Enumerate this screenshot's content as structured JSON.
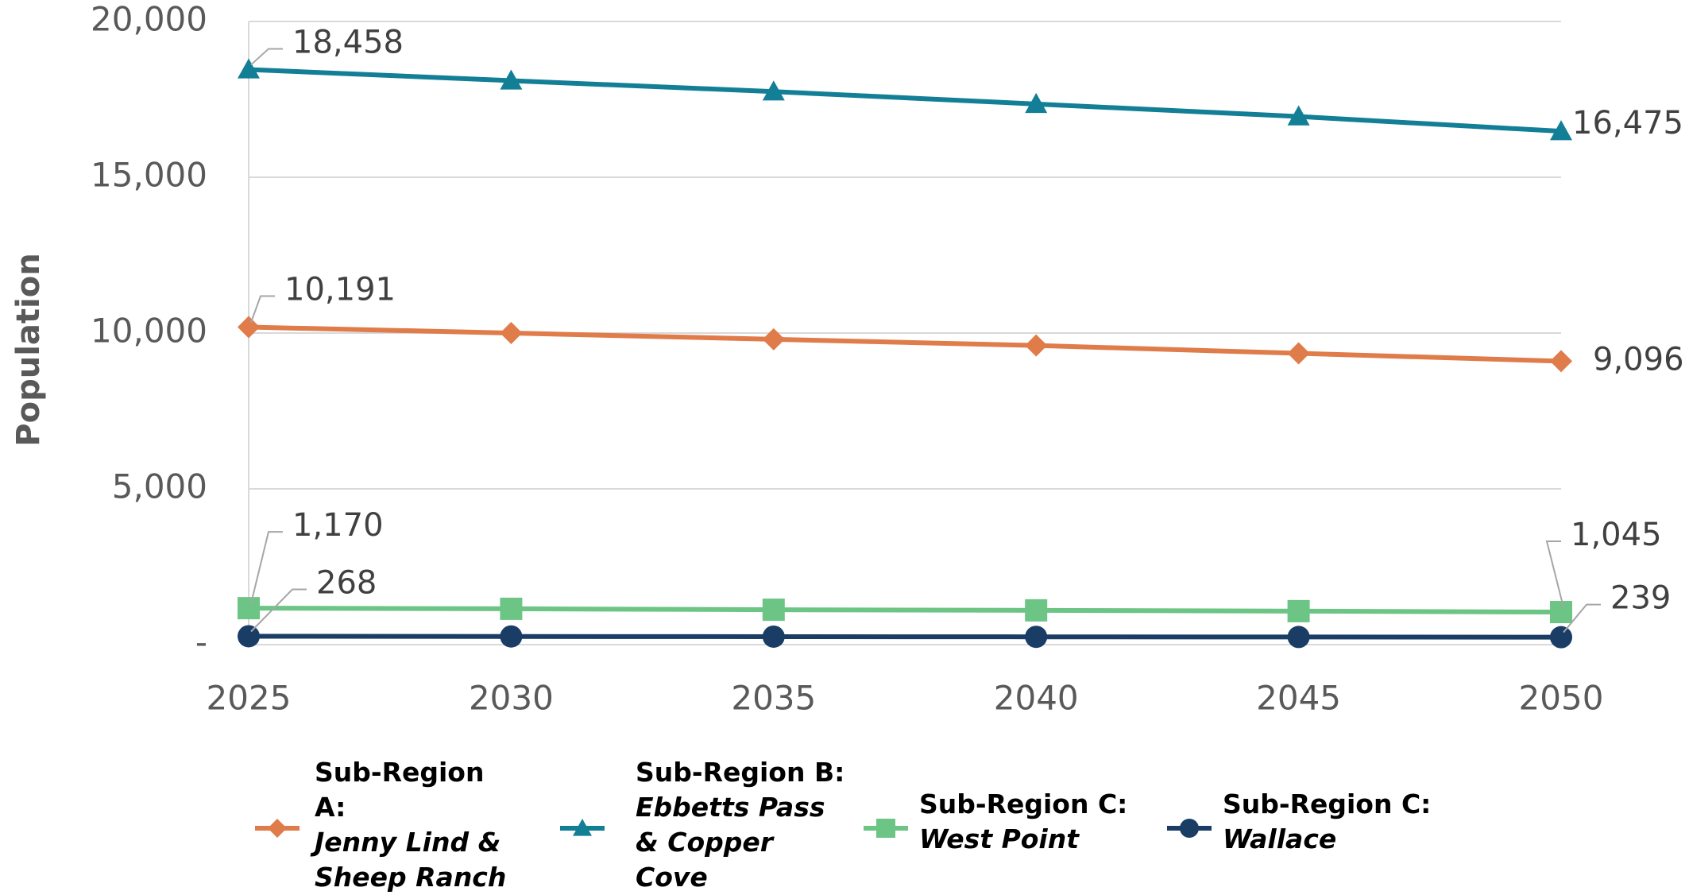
{
  "chart_data": {
    "type": "line",
    "y_label": "Population",
    "categories": [
      "2025",
      "2030",
      "2035",
      "2040",
      "2045",
      "2050"
    ],
    "series": [
      {
        "name": "Sub-Region A: Jenny Lind & Sheep Ranch",
        "color": "#e07b4a",
        "marker": "diamond",
        "values": [
          10191,
          10000,
          9800,
          9600,
          9350,
          9096
        ],
        "value_labels": [
          "10,191",
          null,
          null,
          null,
          null,
          "9,096"
        ]
      },
      {
        "name": "Sub-Region B: Ebbetts Pass & Copper Cove",
        "color": "#137f96",
        "marker": "triangle",
        "values": [
          18458,
          18100,
          17750,
          17350,
          16950,
          16475
        ],
        "value_labels": [
          "18,458",
          null,
          null,
          null,
          null,
          "16,475"
        ]
      },
      {
        "name": "Sub-Region C: West Point",
        "color": "#6cc585",
        "marker": "square",
        "values": [
          1170,
          1150,
          1120,
          1100,
          1075,
          1045
        ],
        "value_labels": [
          "1,170",
          null,
          null,
          null,
          null,
          "1,045"
        ]
      },
      {
        "name": "Sub-Region C: Wallace",
        "color": "#1a3d66",
        "marker": "circle",
        "values": [
          268,
          262,
          256,
          250,
          245,
          239
        ],
        "value_labels": [
          "268",
          null,
          null,
          null,
          null,
          "239"
        ]
      }
    ],
    "ylim": [
      0,
      20000
    ],
    "yticks": [
      {
        "value": 0,
        "label": "-"
      },
      {
        "value": 5000,
        "label": "5,000"
      },
      {
        "value": 10000,
        "label": "10,000"
      },
      {
        "value": 15000,
        "label": "15,000"
      },
      {
        "value": 20000,
        "label": "20,000"
      }
    ],
    "grid": true
  }
}
